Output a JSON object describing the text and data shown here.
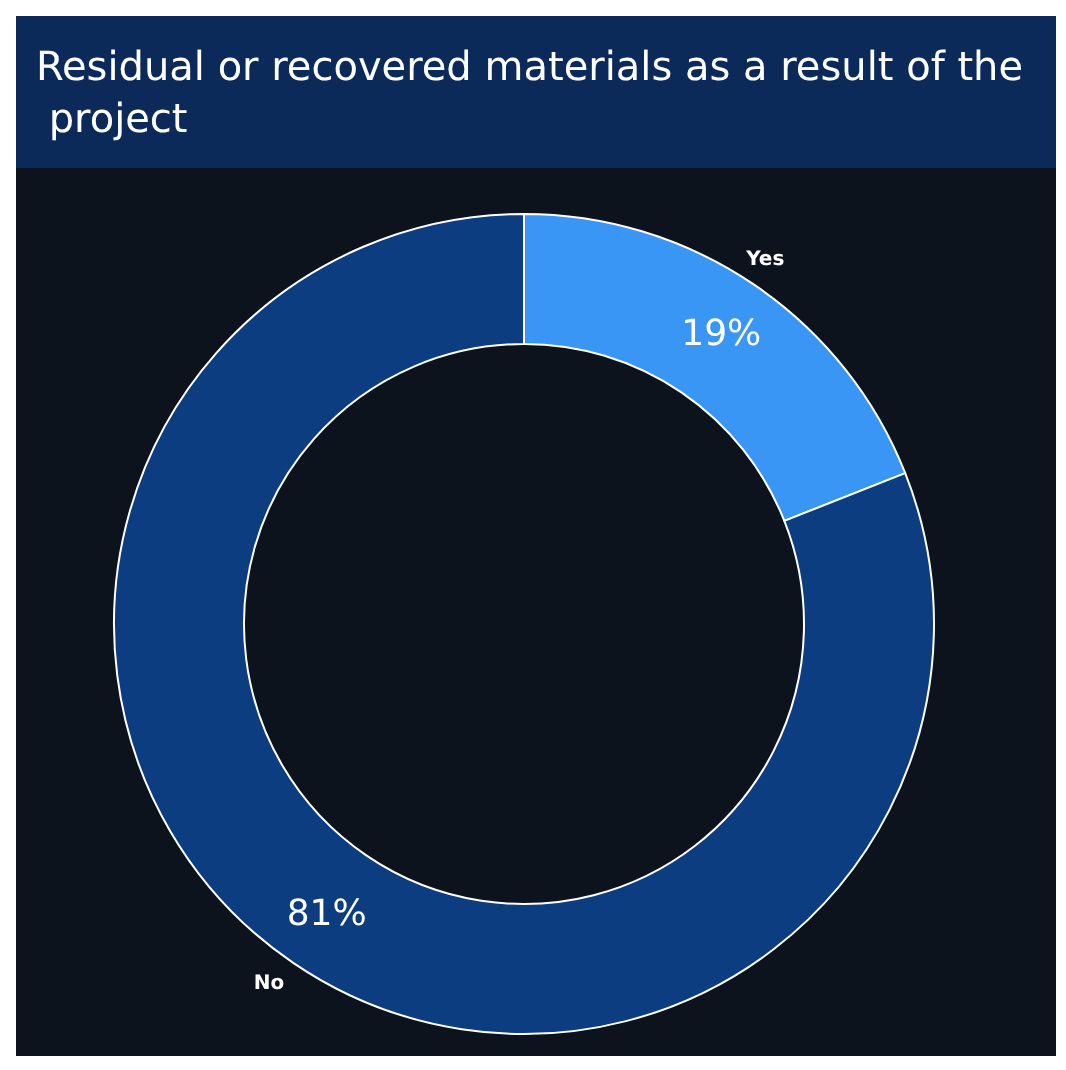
{
  "chart_data": {
    "type": "donut",
    "title": "Residual or recovered materials as a result of the project",
    "categories": [
      "Yes",
      "No"
    ],
    "values": [
      19,
      81
    ],
    "colors": [
      "#3a96f5",
      "#0b3d80"
    ],
    "value_labels": [
      "19%",
      "81%"
    ],
    "legend": false
  }
}
